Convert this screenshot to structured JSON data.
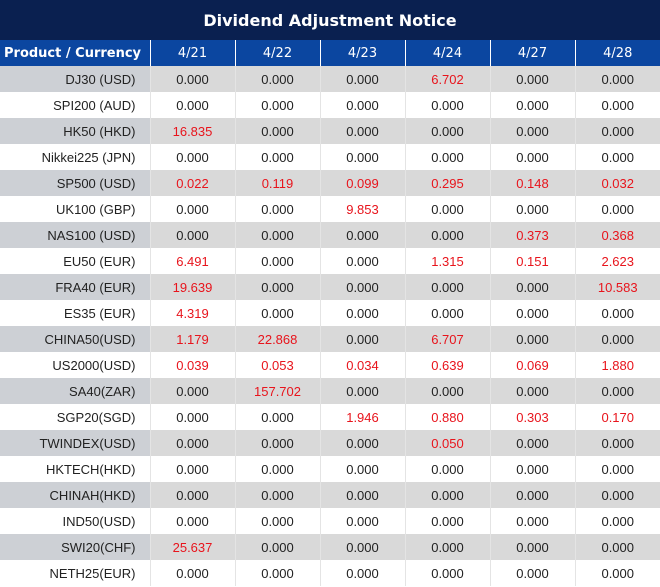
{
  "title": "Dividend Adjustment Notice",
  "header": {
    "first": "Product / Currency",
    "dates": [
      "4/21",
      "4/22",
      "4/23",
      "4/24",
      "4/27",
      "4/28"
    ]
  },
  "colors": {
    "title_bg": "#0a2050",
    "header_bg": "#0b46a0",
    "nonzero_value": "#e8141c"
  },
  "rows": [
    {
      "name": "DJ30 (USD)",
      "values": [
        "0.000",
        "0.000",
        "0.000",
        "6.702",
        "0.000",
        "0.000"
      ]
    },
    {
      "name": "SPI200 (AUD)",
      "values": [
        "0.000",
        "0.000",
        "0.000",
        "0.000",
        "0.000",
        "0.000"
      ]
    },
    {
      "name": "HK50 (HKD)",
      "values": [
        "16.835",
        "0.000",
        "0.000",
        "0.000",
        "0.000",
        "0.000"
      ]
    },
    {
      "name": "Nikkei225 (JPN)",
      "values": [
        "0.000",
        "0.000",
        "0.000",
        "0.000",
        "0.000",
        "0.000"
      ]
    },
    {
      "name": "SP500 (USD)",
      "values": [
        "0.022",
        "0.119",
        "0.099",
        "0.295",
        "0.148",
        "0.032"
      ]
    },
    {
      "name": "UK100 (GBP)",
      "values": [
        "0.000",
        "0.000",
        "9.853",
        "0.000",
        "0.000",
        "0.000"
      ]
    },
    {
      "name": "NAS100 (USD)",
      "values": [
        "0.000",
        "0.000",
        "0.000",
        "0.000",
        "0.373",
        "0.368"
      ]
    },
    {
      "name": "EU50 (EUR)",
      "values": [
        "6.491",
        "0.000",
        "0.000",
        "1.315",
        "0.151",
        "2.623"
      ]
    },
    {
      "name": "FRA40 (EUR)",
      "values": [
        "19.639",
        "0.000",
        "0.000",
        "0.000",
        "0.000",
        "10.583"
      ]
    },
    {
      "name": "ES35 (EUR)",
      "values": [
        "4.319",
        "0.000",
        "0.000",
        "0.000",
        "0.000",
        "0.000"
      ]
    },
    {
      "name": "CHINA50(USD)",
      "values": [
        "1.179",
        "22.868",
        "0.000",
        "6.707",
        "0.000",
        "0.000"
      ]
    },
    {
      "name": "US2000(USD)",
      "values": [
        "0.039",
        "0.053",
        "0.034",
        "0.639",
        "0.069",
        "1.880"
      ]
    },
    {
      "name": "SA40(ZAR)",
      "values": [
        "0.000",
        "157.702",
        "0.000",
        "0.000",
        "0.000",
        "0.000"
      ]
    },
    {
      "name": "SGP20(SGD)",
      "values": [
        "0.000",
        "0.000",
        "1.946",
        "0.880",
        "0.303",
        "0.170"
      ]
    },
    {
      "name": "TWINDEX(USD)",
      "values": [
        "0.000",
        "0.000",
        "0.000",
        "0.050",
        "0.000",
        "0.000"
      ]
    },
    {
      "name": "HKTECH(HKD)",
      "values": [
        "0.000",
        "0.000",
        "0.000",
        "0.000",
        "0.000",
        "0.000"
      ]
    },
    {
      "name": "CHINAH(HKD)",
      "values": [
        "0.000",
        "0.000",
        "0.000",
        "0.000",
        "0.000",
        "0.000"
      ]
    },
    {
      "name": "IND50(USD)",
      "values": [
        "0.000",
        "0.000",
        "0.000",
        "0.000",
        "0.000",
        "0.000"
      ]
    },
    {
      "name": "SWI20(CHF)",
      "values": [
        "25.637",
        "0.000",
        "0.000",
        "0.000",
        "0.000",
        "0.000"
      ]
    },
    {
      "name": "NETH25(EUR)",
      "values": [
        "0.000",
        "0.000",
        "0.000",
        "0.000",
        "0.000",
        "0.000"
      ]
    }
  ]
}
